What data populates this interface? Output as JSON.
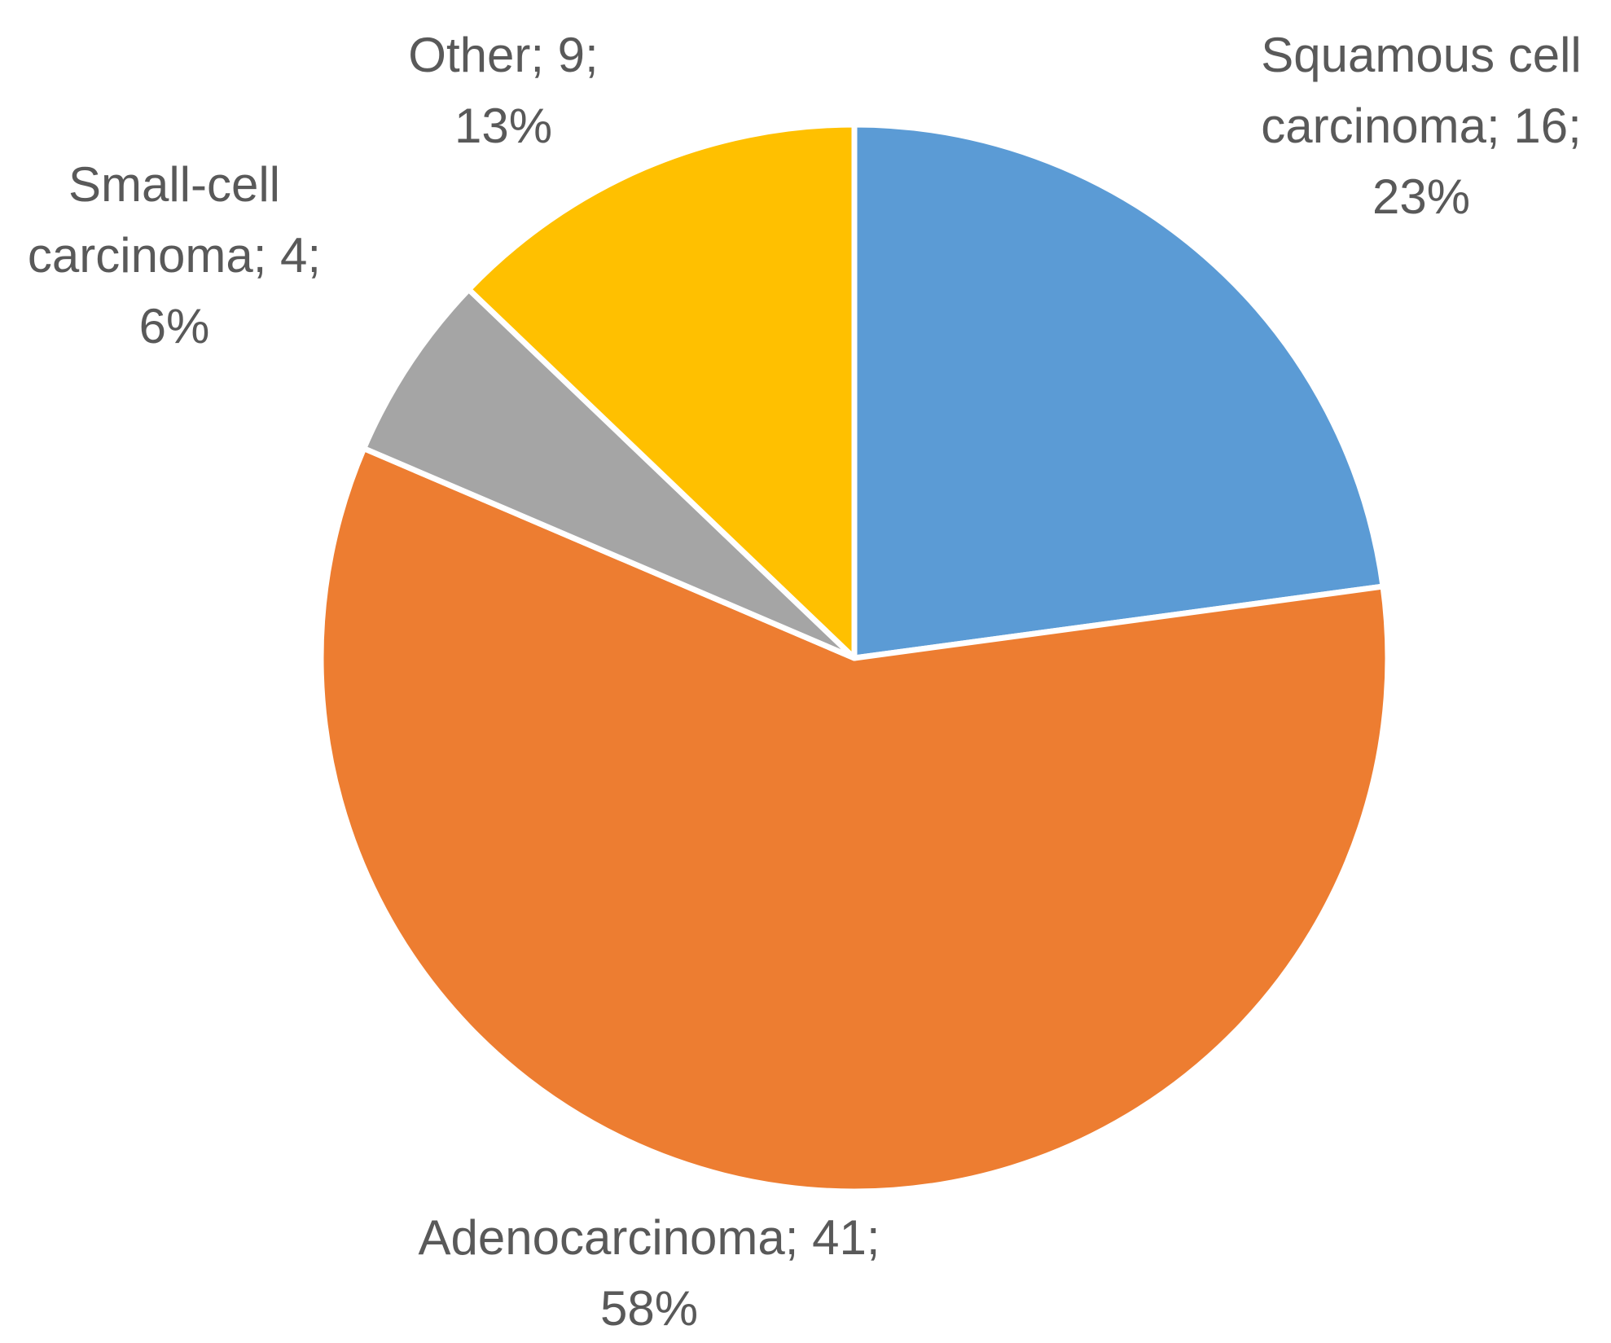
{
  "chart_data": {
    "type": "pie",
    "title": "",
    "slices": [
      {
        "name": "Squamous cell carcinoma",
        "value": 16,
        "percent": "23%",
        "color": "#5B9BD5",
        "label_lines": [
          "Squamous cell",
          "carcinoma; 16;",
          "23%"
        ]
      },
      {
        "name": "Adenocarcinoma",
        "value": 41,
        "percent": "58%",
        "color": "#ED7D31",
        "label_lines": [
          "Adenocarcinoma; 41;",
          "58%"
        ]
      },
      {
        "name": "Small-cell carcinoma",
        "value": 4,
        "percent": "6%",
        "color": "#A5A5A5",
        "label_lines": [
          "Small-cell",
          "carcinoma; 4;",
          "6%"
        ]
      },
      {
        "name": "Other",
        "value": 9,
        "percent": "13%",
        "color": "#FFC000",
        "label_lines": [
          "Other; 9;",
          "13%"
        ]
      }
    ],
    "start_direction": "12 o'clock",
    "order": "clockwise",
    "legend": "none"
  }
}
